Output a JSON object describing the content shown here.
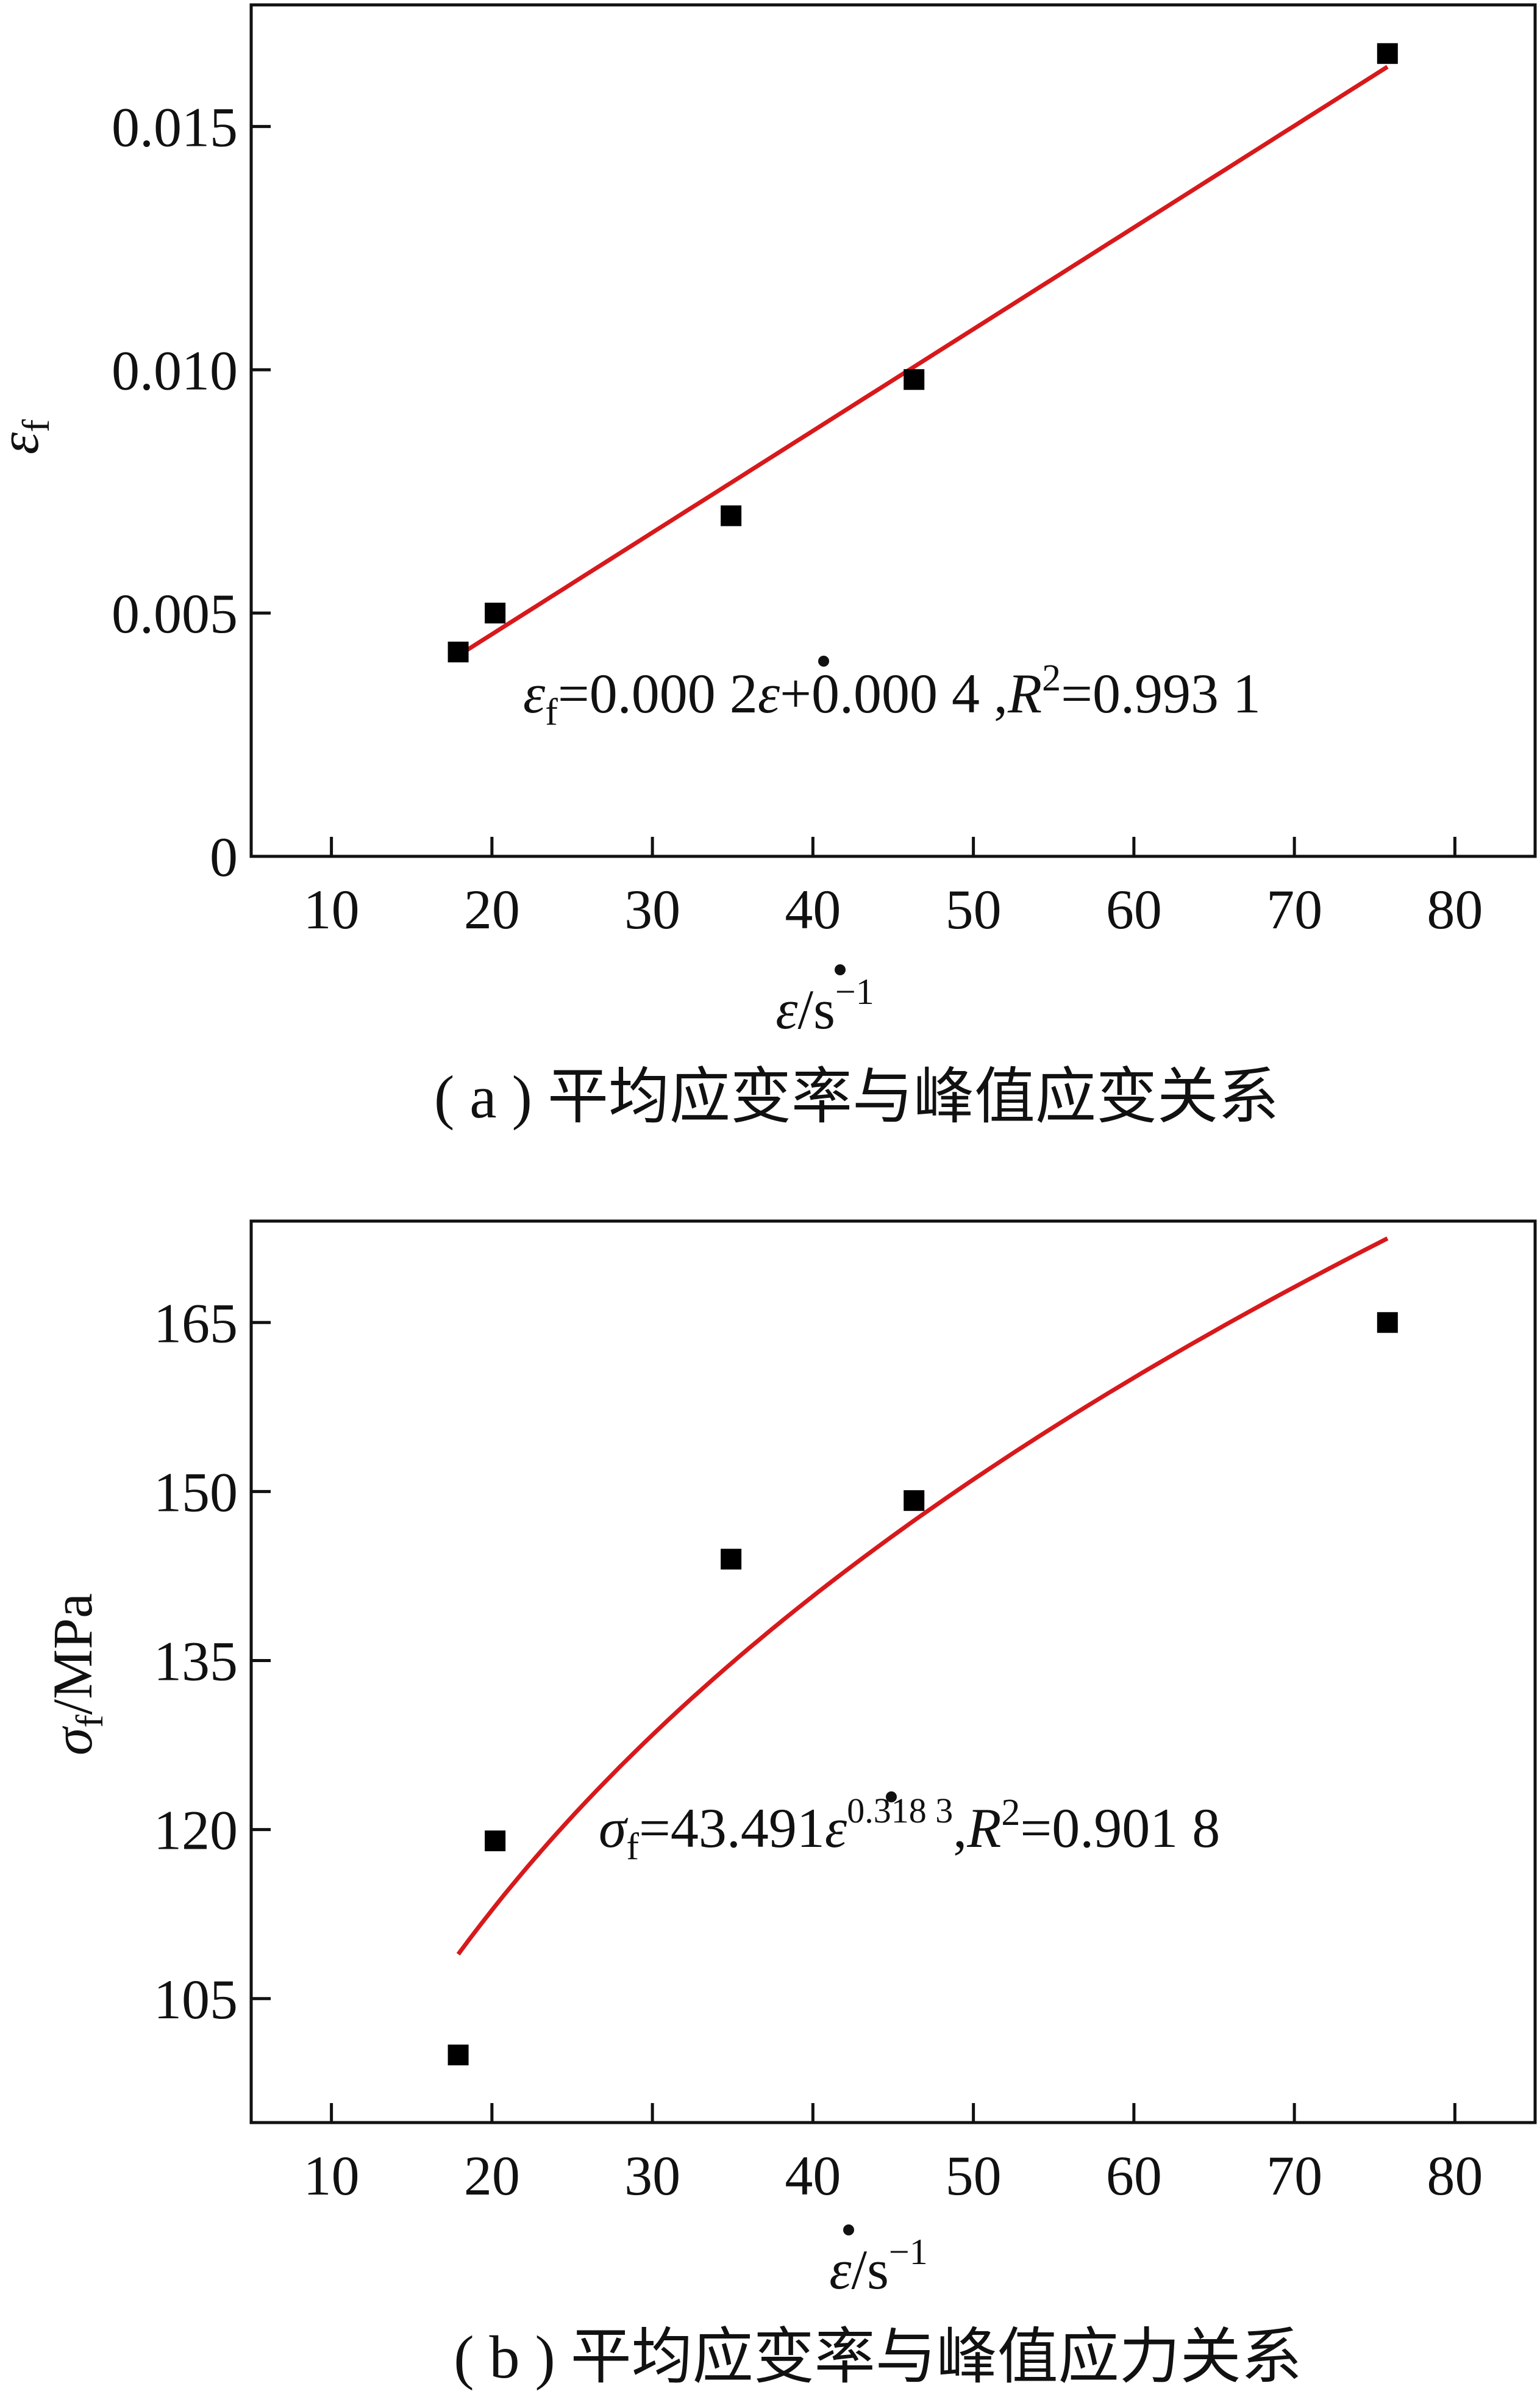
{
  "chart_data": [
    {
      "type": "scatter",
      "caption": "( a ) 平均应变率与峰值应变关系",
      "xlabel": "ε̇/s⁻¹",
      "ylabel": "εf",
      "x_ticks": [
        "10",
        "20",
        "30",
        "40",
        "50",
        "60",
        "70",
        "80"
      ],
      "y_ticks": [
        "0",
        "0.005",
        "0.010",
        "0.015"
      ],
      "xlim": [
        5,
        85
      ],
      "ylim": [
        0,
        0.0175
      ],
      "series": [
        {
          "points": [
            [
              17.9,
              0.0042
            ],
            [
              20.2,
              0.005
            ],
            [
              34.9,
              0.007
            ],
            [
              46.3,
              0.0098
            ],
            [
              75.8,
              0.0165
            ]
          ]
        }
      ],
      "fit": {
        "kind": "linear",
        "a": 0.000209,
        "b": 0.000385,
        "x_range": [
          17.9,
          75.8
        ],
        "color": "#d7191c"
      },
      "equation": {
        "lhs": "ε",
        "lhs_sub": "f",
        "mid": "=0.000 2",
        "dot_var": "ε",
        "rhs": "+0.000 4 ,",
        "r": "R",
        "r_sup": "2",
        "r_val": "=0.993 1"
      }
    },
    {
      "type": "scatter",
      "caption": "( b ) 平均应变率与峰值应力关系",
      "xlabel": "ε̇/s⁻¹",
      "ylabel": "σf/MPa",
      "x_ticks": [
        "10",
        "20",
        "30",
        "40",
        "50",
        "60",
        "70",
        "80"
      ],
      "y_ticks": [
        "105",
        "120",
        "135",
        "150",
        "165"
      ],
      "xlim": [
        5,
        85
      ],
      "ylim": [
        94,
        174
      ],
      "series": [
        {
          "points": [
            [
              17.9,
              100.0
            ],
            [
              20.2,
              119.0
            ],
            [
              34.9,
              144.0
            ],
            [
              46.3,
              149.2
            ],
            [
              75.8,
              165.0
            ]
          ]
        }
      ],
      "fit": {
        "kind": "power",
        "a": 43.491,
        "b": 0.3183,
        "x_range": [
          17.9,
          75.8
        ],
        "color": "#d7191c"
      },
      "equation": {
        "lhs": "σ",
        "lhs_sub": "f",
        "mid": "=43.491",
        "dot_var": "ε",
        "exp": "0.318 3",
        "sep": ",",
        "r": "R",
        "r_sup": "2",
        "r_val": "=0.901 8"
      }
    }
  ]
}
